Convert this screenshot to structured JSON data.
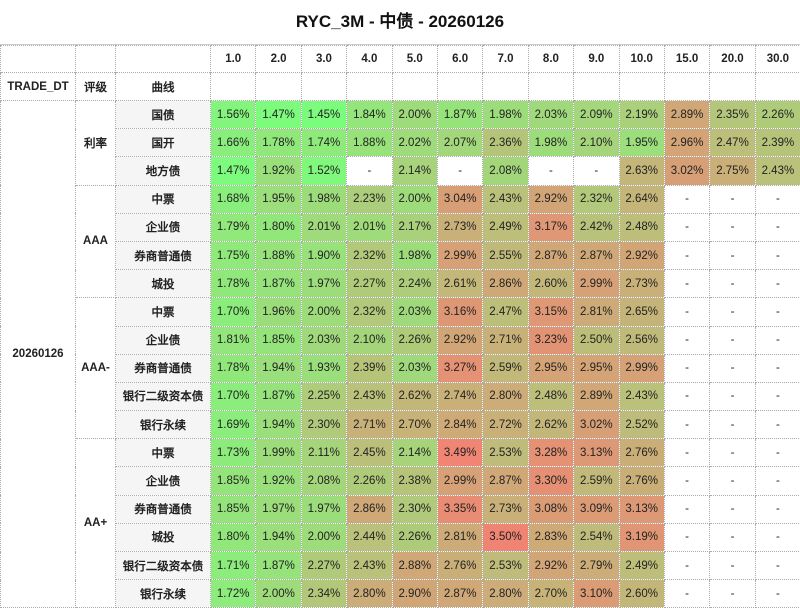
{
  "title": "RYC_3M - 中债 - 20260126",
  "header": {
    "trade_dt": "TRADE_DT",
    "rating": "评级",
    "curve": "曲线"
  },
  "chart_data": {
    "type": "heatmap",
    "title": "RYC_3M - 中债 - 20260126",
    "trade_dt": "20260126",
    "tenors": [
      "1.0",
      "2.0",
      "3.0",
      "4.0",
      "5.0",
      "6.0",
      "7.0",
      "8.0",
      "9.0",
      "10.0",
      "15.0",
      "20.0",
      "30.0"
    ],
    "color_scale": {
      "low": "#7cfc7c",
      "mid": "#bdbd7a",
      "high": "#ef8472",
      "min": 1.45,
      "mid_value": 2.5,
      "max": 3.5,
      "empty": "#ffffff"
    },
    "groups": [
      {
        "rating": "利率",
        "rows": [
          {
            "curve": "国债",
            "values": [
              "1.56%",
              "1.47%",
              "1.45%",
              "1.84%",
              "2.00%",
              "1.87%",
              "1.98%",
              "2.03%",
              "2.09%",
              "2.19%",
              "2.89%",
              "2.35%",
              "2.26%"
            ]
          },
          {
            "curve": "国开",
            "values": [
              "1.66%",
              "1.78%",
              "1.74%",
              "1.88%",
              "2.02%",
              "2.07%",
              "2.36%",
              "1.98%",
              "2.10%",
              "1.95%",
              "2.96%",
              "2.47%",
              "2.39%"
            ]
          },
          {
            "curve": "地方债",
            "values": [
              "1.47%",
              "1.92%",
              "1.52%",
              "-",
              "2.14%",
              "-",
              "2.08%",
              "-",
              "-",
              "2.63%",
              "3.02%",
              "2.75%",
              "2.43%"
            ]
          }
        ]
      },
      {
        "rating": "AAA",
        "rows": [
          {
            "curve": "中票",
            "values": [
              "1.68%",
              "1.95%",
              "1.98%",
              "2.23%",
              "2.00%",
              "3.04%",
              "2.43%",
              "2.92%",
              "2.32%",
              "2.64%",
              "-",
              "-",
              "-"
            ]
          },
          {
            "curve": "企业债",
            "values": [
              "1.79%",
              "1.80%",
              "2.01%",
              "2.01%",
              "2.17%",
              "2.73%",
              "2.49%",
              "3.17%",
              "2.42%",
              "2.48%",
              "-",
              "-",
              "-"
            ]
          },
          {
            "curve": "券商普通债",
            "values": [
              "1.75%",
              "1.88%",
              "1.90%",
              "2.32%",
              "1.98%",
              "2.99%",
              "2.55%",
              "2.87%",
              "2.87%",
              "2.92%",
              "-",
              "-",
              "-"
            ]
          },
          {
            "curve": "城投",
            "values": [
              "1.78%",
              "1.87%",
              "1.97%",
              "2.27%",
              "2.24%",
              "2.61%",
              "2.86%",
              "2.60%",
              "2.99%",
              "2.73%",
              "-",
              "-",
              "-"
            ]
          }
        ]
      },
      {
        "rating": "AAA-",
        "rows": [
          {
            "curve": "中票",
            "values": [
              "1.70%",
              "1.96%",
              "2.00%",
              "2.32%",
              "2.03%",
              "3.16%",
              "2.47%",
              "3.15%",
              "2.81%",
              "2.65%",
              "-",
              "-",
              "-"
            ]
          },
          {
            "curve": "企业债",
            "values": [
              "1.81%",
              "1.85%",
              "2.03%",
              "2.10%",
              "2.26%",
              "2.92%",
              "2.71%",
              "3.23%",
              "2.50%",
              "2.56%",
              "-",
              "-",
              "-"
            ]
          },
          {
            "curve": "券商普通债",
            "values": [
              "1.78%",
              "1.94%",
              "1.93%",
              "2.39%",
              "2.03%",
              "3.27%",
              "2.59%",
              "2.95%",
              "2.95%",
              "2.99%",
              "-",
              "-",
              "-"
            ]
          },
          {
            "curve": "银行二级资本债",
            "values": [
              "1.70%",
              "1.87%",
              "2.25%",
              "2.43%",
              "2.62%",
              "2.74%",
              "2.80%",
              "2.48%",
              "2.89%",
              "2.43%",
              "-",
              "-",
              "-"
            ]
          },
          {
            "curve": "银行永续",
            "values": [
              "1.69%",
              "1.94%",
              "2.30%",
              "2.71%",
              "2.70%",
              "2.84%",
              "2.72%",
              "2.62%",
              "3.02%",
              "2.52%",
              "-",
              "-",
              "-"
            ]
          }
        ]
      },
      {
        "rating": "AA+",
        "rows": [
          {
            "curve": "中票",
            "values": [
              "1.73%",
              "1.99%",
              "2.11%",
              "2.45%",
              "2.14%",
              "3.49%",
              "2.53%",
              "3.28%",
              "3.13%",
              "2.76%",
              "-",
              "-",
              "-"
            ]
          },
          {
            "curve": "企业债",
            "values": [
              "1.85%",
              "1.92%",
              "2.08%",
              "2.26%",
              "2.38%",
              "2.99%",
              "2.87%",
              "3.30%",
              "2.59%",
              "2.76%",
              "-",
              "-",
              "-"
            ]
          },
          {
            "curve": "券商普通债",
            "values": [
              "1.85%",
              "1.97%",
              "1.97%",
              "2.86%",
              "2.30%",
              "3.35%",
              "2.73%",
              "3.08%",
              "3.09%",
              "3.13%",
              "-",
              "-",
              "-"
            ]
          },
          {
            "curve": "城投",
            "values": [
              "1.80%",
              "1.94%",
              "2.00%",
              "2.44%",
              "2.26%",
              "2.81%",
              "3.50%",
              "2.83%",
              "2.54%",
              "3.19%",
              "-",
              "-",
              "-"
            ]
          },
          {
            "curve": "银行二级资本债",
            "values": [
              "1.71%",
              "1.87%",
              "2.27%",
              "2.43%",
              "2.88%",
              "2.76%",
              "2.53%",
              "2.92%",
              "2.79%",
              "2.49%",
              "-",
              "-",
              "-"
            ]
          },
          {
            "curve": "银行永续",
            "values": [
              "1.72%",
              "2.00%",
              "2.34%",
              "2.80%",
              "2.90%",
              "2.87%",
              "2.80%",
              "2.70%",
              "3.10%",
              "2.60%",
              "-",
              "-",
              "-"
            ]
          }
        ]
      }
    ]
  }
}
